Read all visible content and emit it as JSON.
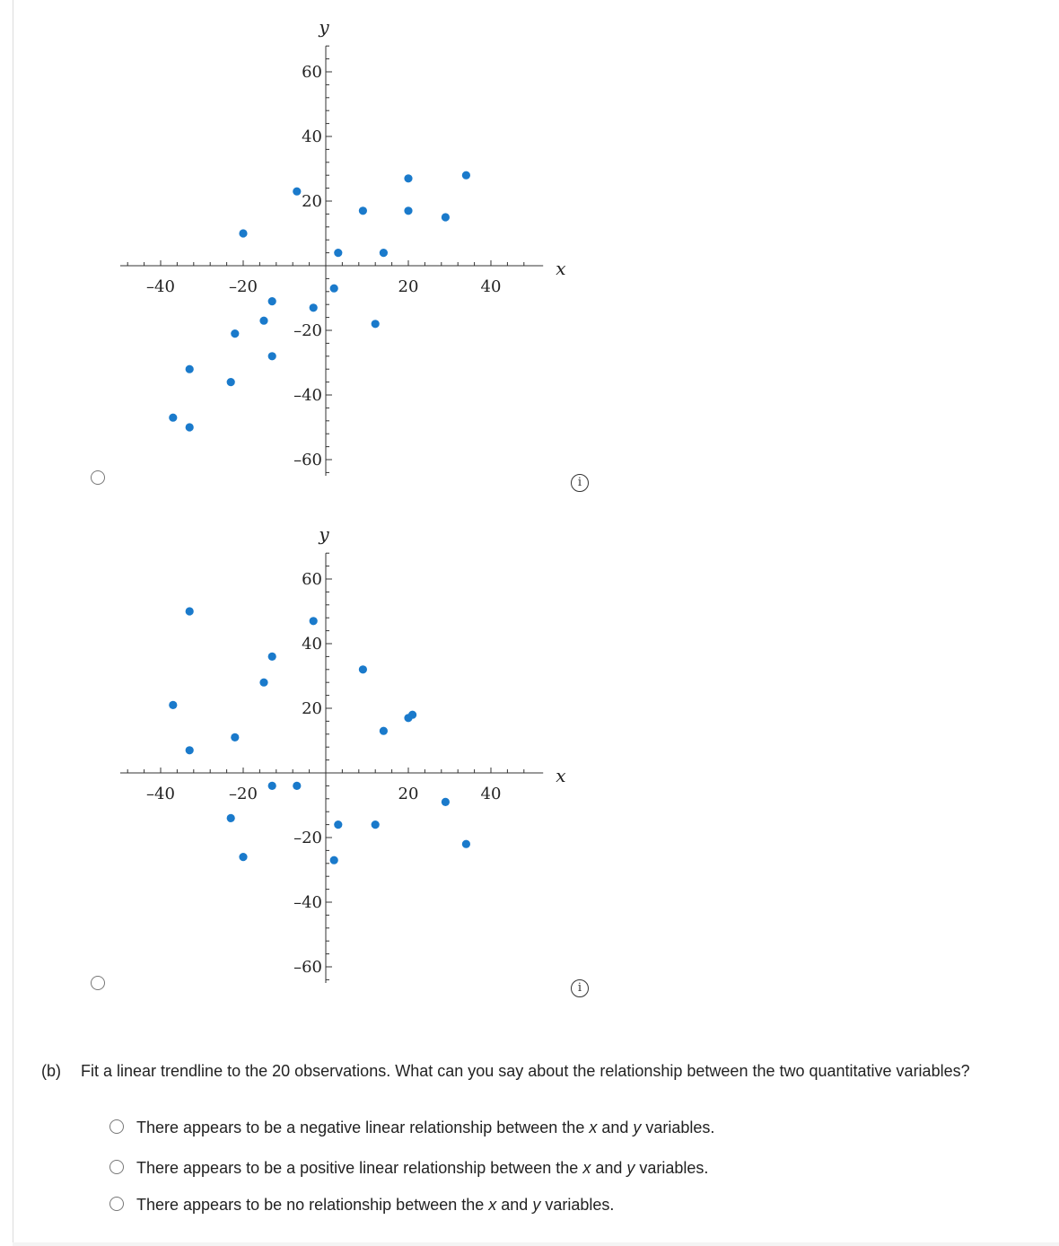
{
  "chart_data": [
    {
      "type": "scatter",
      "title": "",
      "xlabel": "x",
      "ylabel": "y",
      "xlim": [
        -50,
        52
      ],
      "ylim": [
        -65,
        68
      ],
      "x_ticks": [
        -40,
        -20,
        20,
        40
      ],
      "x_tick_labels": [
        "–40",
        "–20",
        "20",
        "40"
      ],
      "y_ticks": [
        60,
        40,
        20,
        -20,
        -40,
        -60
      ],
      "y_tick_labels": [
        "60",
        "40",
        "20",
        "–20",
        "–40",
        "–60"
      ],
      "points": [
        {
          "x": -20,
          "y": 10
        },
        {
          "x": -7,
          "y": 23
        },
        {
          "x": 3,
          "y": 4
        },
        {
          "x": 9,
          "y": 17
        },
        {
          "x": 14,
          "y": 4
        },
        {
          "x": 20,
          "y": 27
        },
        {
          "x": 20,
          "y": 17
        },
        {
          "x": 29,
          "y": 15
        },
        {
          "x": 34,
          "y": 28
        },
        {
          "x": 2,
          "y": -7
        },
        {
          "x": -13,
          "y": -11
        },
        {
          "x": -3,
          "y": -13
        },
        {
          "x": 12,
          "y": -18
        },
        {
          "x": -15,
          "y": -17
        },
        {
          "x": -22,
          "y": -21
        },
        {
          "x": -13,
          "y": -28
        },
        {
          "x": -33,
          "y": -32
        },
        {
          "x": -23,
          "y": -36
        },
        {
          "x": -37,
          "y": -47
        },
        {
          "x": -33,
          "y": -50
        }
      ]
    },
    {
      "type": "scatter",
      "title": "",
      "xlabel": "x",
      "ylabel": "y",
      "xlim": [
        -50,
        52
      ],
      "ylim": [
        -65,
        68
      ],
      "x_ticks": [
        -40,
        -20,
        20,
        40
      ],
      "x_tick_labels": [
        "–40",
        "–20",
        "20",
        "40"
      ],
      "y_ticks": [
        60,
        40,
        20,
        -20,
        -40,
        -60
      ],
      "y_tick_labels": [
        "60",
        "40",
        "20",
        "–20",
        "–40",
        "–60"
      ],
      "points": [
        {
          "x": -33,
          "y": 50
        },
        {
          "x": -3,
          "y": 47
        },
        {
          "x": -13,
          "y": 36
        },
        {
          "x": 9,
          "y": 32
        },
        {
          "x": -15,
          "y": 28
        },
        {
          "x": -37,
          "y": 21
        },
        {
          "x": 20,
          "y": 17
        },
        {
          "x": 21,
          "y": 18
        },
        {
          "x": 14,
          "y": 13
        },
        {
          "x": -22,
          "y": 11
        },
        {
          "x": -33,
          "y": 7
        },
        {
          "x": -13,
          "y": -4
        },
        {
          "x": -7,
          "y": -4
        },
        {
          "x": 29,
          "y": -9
        },
        {
          "x": -23,
          "y": -14
        },
        {
          "x": 3,
          "y": -16
        },
        {
          "x": 12,
          "y": -16
        },
        {
          "x": 34,
          "y": -22
        },
        {
          "x": -20,
          "y": -26
        },
        {
          "x": 2,
          "y": -27
        }
      ]
    }
  ],
  "question": {
    "label": "(b)",
    "text": "Fit a linear trendline to the 20 observations. What can you say about the relationship between the two quantitative variables?",
    "options": [
      {
        "before": "There appears to be a negative linear relationship between the ",
        "x": "x",
        "mid": " and ",
        "y": "y",
        "after": " variables."
      },
      {
        "before": "There appears to be a positive linear relationship between the ",
        "x": "x",
        "mid": " and ",
        "y": "y",
        "after": " variables."
      },
      {
        "before": "There appears to be no relationship between the ",
        "x": "x",
        "mid": " and ",
        "y": "y",
        "after": " variables."
      }
    ]
  },
  "info_glyph": "i",
  "colors": {
    "point": "#1a7acb",
    "axis": "#333333"
  }
}
